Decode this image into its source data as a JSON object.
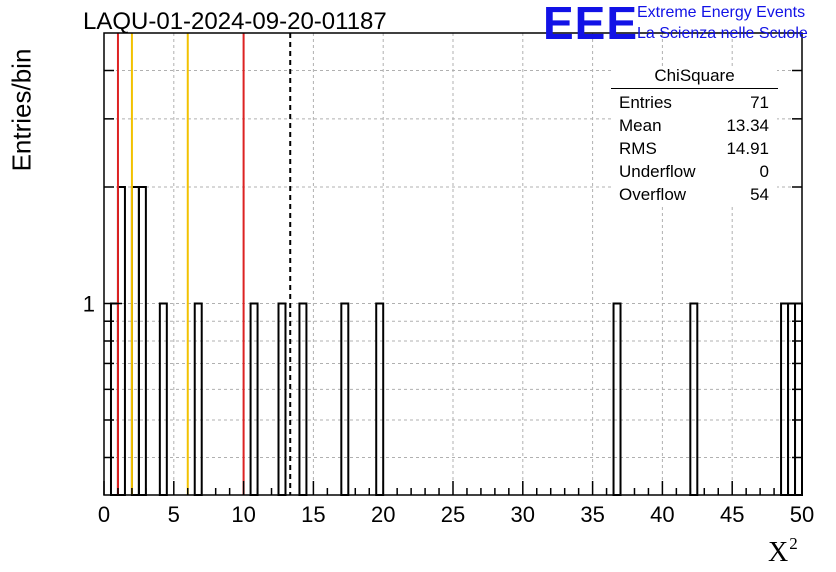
{
  "header": {
    "title": "LAQU-01-2024-09-20-01187",
    "logo_text": "EEE",
    "logo_line1": "Extreme Energy Events",
    "logo_line2": "La Scienza nelle Scuole"
  },
  "stats": {
    "name": "ChiSquare",
    "rows": [
      {
        "label": "Entries",
        "value": "71"
      },
      {
        "label": "Mean",
        "value": "13.34"
      },
      {
        "label": "RMS",
        "value": "14.91"
      },
      {
        "label": "Underflow",
        "value": "0"
      },
      {
        "label": "Overflow",
        "value": "54"
      }
    ]
  },
  "chart_data": {
    "type": "bar",
    "title": "LAQU-01-2024-09-20-01187",
    "xlabel": "X",
    "xlabel_sup": "2",
    "ylabel": "Entries/bin",
    "xlim": [
      0,
      50
    ],
    "ylim": [
      0.32,
      5
    ],
    "y_log": true,
    "grid": true,
    "x_ticks": [
      0,
      5,
      10,
      15,
      20,
      25,
      30,
      35,
      40,
      45,
      50
    ],
    "y_ticks": [
      1
    ],
    "bin_width": 0.5,
    "bins": [
      {
        "x": 0.5,
        "count": 1
      },
      {
        "x": 1.0,
        "count": 2
      },
      {
        "x": 2.0,
        "count": 2
      },
      {
        "x": 2.5,
        "count": 2
      },
      {
        "x": 4.0,
        "count": 1
      },
      {
        "x": 6.5,
        "count": 1
      },
      {
        "x": 10.5,
        "count": 1
      },
      {
        "x": 12.5,
        "count": 1
      },
      {
        "x": 14.0,
        "count": 1
      },
      {
        "x": 17.0,
        "count": 1
      },
      {
        "x": 19.5,
        "count": 1
      },
      {
        "x": 36.5,
        "count": 1
      },
      {
        "x": 42.0,
        "count": 1
      },
      {
        "x": 48.5,
        "count": 1
      },
      {
        "x": 49.0,
        "count": 1
      },
      {
        "x": 49.5,
        "count": 1
      }
    ],
    "reference_lines": [
      {
        "x": 1.0,
        "color": "#dd2222",
        "style": "solid"
      },
      {
        "x": 2.0,
        "color": "#f2c200",
        "style": "solid"
      },
      {
        "x": 6.0,
        "color": "#f2c200",
        "style": "solid"
      },
      {
        "x": 10.0,
        "color": "#dd2222",
        "style": "solid"
      },
      {
        "x": 13.34,
        "color": "#000000",
        "style": "dashed"
      }
    ],
    "colors": {
      "bar_stroke": "#000000",
      "grid": "#b0b0b0",
      "logo": "#1212e6"
    }
  }
}
